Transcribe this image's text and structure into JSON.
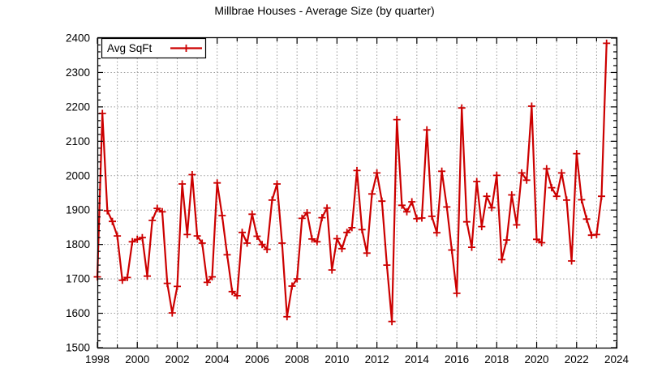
{
  "title": "Millbrae Houses - Average Size (by quarter)",
  "legend": {
    "label": "Avg SqFt",
    "position": "top-left"
  },
  "colors": {
    "series": "#cc0000",
    "grid": "#9a9a9a",
    "axis": "#000000",
    "background": "#ffffff",
    "text": "#000000"
  },
  "chart_data": {
    "type": "line",
    "title": "Millbrae Houses - Average Size (by quarter)",
    "xlabel": "",
    "ylabel": "",
    "xlim": [
      1998,
      2024
    ],
    "ylim": [
      1500,
      2400
    ],
    "grid": true,
    "legend_position": "top-left",
    "marker": "plus",
    "x_start": 1998.0,
    "x_step": 0.25,
    "x_major_ticks": [
      1998,
      2000,
      2002,
      2004,
      2006,
      2008,
      2010,
      2012,
      2014,
      2016,
      2018,
      2020,
      2022,
      2024
    ],
    "x_minor_tick_step": 1,
    "y_major_ticks": [
      1500,
      1600,
      1700,
      1800,
      1900,
      2000,
      2100,
      2200,
      2300,
      2400
    ],
    "y_minor_tick_step": 20,
    "series": [
      {
        "name": "Avg SqFt",
        "color": "#cc0000",
        "period": "quarterly",
        "values": [
          1706,
          2181,
          1898,
          1867,
          1825,
          1696,
          1704,
          1808,
          1815,
          1820,
          1708,
          1870,
          1905,
          1895,
          1687,
          1601,
          1678,
          1976,
          1829,
          2003,
          1825,
          1804,
          1690,
          1706,
          1979,
          1884,
          1770,
          1663,
          1651,
          1835,
          1804,
          1888,
          1824,
          1800,
          1786,
          1929,
          1976,
          1804,
          1590,
          1679,
          1700,
          1876,
          1892,
          1816,
          1808,
          1878,
          1906,
          1726,
          1817,
          1788,
          1835,
          1849,
          2015,
          1843,
          1775,
          1947,
          2008,
          1926,
          1740,
          1576,
          2163,
          1914,
          1895,
          1924,
          1875,
          1877,
          2133,
          1882,
          1834,
          2013,
          1909,
          1784,
          1658,
          2197,
          1866,
          1792,
          1983,
          1852,
          1940,
          1907,
          2001,
          1756,
          1813,
          1944,
          1857,
          2008,
          1987,
          2202,
          1815,
          1805,
          2020,
          1965,
          1940,
          2008,
          1929,
          1752,
          2064,
          1930,
          1874,
          1827,
          1829,
          1940,
          2385
        ]
      }
    ]
  }
}
